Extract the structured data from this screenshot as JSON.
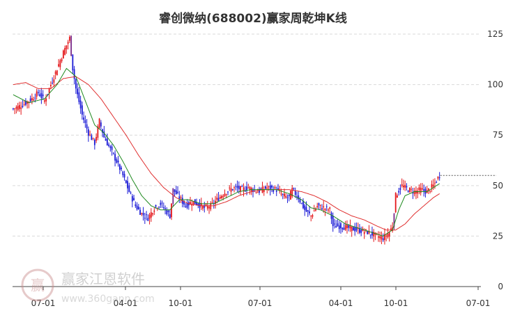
{
  "chart_data": {
    "type": "candlestick",
    "title": "睿创微纳(688002)赢家周乾坤K线",
    "x_ticks": [
      "07-01",
      "04-01",
      "10-01",
      "07-01",
      "04-01",
      "10-01",
      "07-01"
    ],
    "y_ticks": [
      0,
      25,
      50,
      75,
      100,
      125
    ],
    "ylim": [
      0,
      135
    ],
    "grid": "horizontal dashed",
    "current_level": 55,
    "colors": {
      "up": "#e4161a",
      "down": "#1a1ad6",
      "neutral": "#7a2a8a",
      "ma_short": "#1f8a1f",
      "ma_long": "#e03030",
      "grid": "#d9d9d9",
      "level_line": "#555555"
    },
    "series": [
      {
        "name": "price",
        "anchors": [
          [
            0,
            88
          ],
          [
            6,
            90
          ],
          [
            12,
            93
          ],
          [
            16,
            96
          ],
          [
            20,
            92
          ],
          [
            24,
            100
          ],
          [
            28,
            108
          ],
          [
            32,
            116
          ],
          [
            36,
            123
          ],
          [
            38,
            108
          ],
          [
            40,
            98
          ],
          [
            44,
            85
          ],
          [
            48,
            76
          ],
          [
            52,
            71
          ],
          [
            55,
            82
          ],
          [
            58,
            74
          ],
          [
            62,
            68
          ],
          [
            66,
            62
          ],
          [
            70,
            55
          ],
          [
            74,
            47
          ],
          [
            78,
            40
          ],
          [
            82,
            36
          ],
          [
            86,
            34
          ],
          [
            90,
            39
          ],
          [
            94,
            41
          ],
          [
            98,
            37
          ],
          [
            100,
            35
          ],
          [
            102,
            48
          ],
          [
            106,
            44
          ],
          [
            110,
            40
          ],
          [
            114,
            42
          ],
          [
            118,
            41
          ],
          [
            122,
            39
          ],
          [
            126,
            40
          ],
          [
            130,
            43
          ],
          [
            134,
            46
          ],
          [
            138,
            48
          ],
          [
            142,
            49
          ],
          [
            146,
            48
          ],
          [
            150,
            49
          ],
          [
            156,
            47
          ],
          [
            162,
            49
          ],
          [
            168,
            48
          ],
          [
            172,
            45
          ],
          [
            176,
            44
          ],
          [
            178,
            48
          ],
          [
            182,
            44
          ],
          [
            186,
            38
          ],
          [
            190,
            35
          ],
          [
            194,
            40
          ],
          [
            198,
            39
          ],
          [
            202,
            38
          ],
          [
            204,
            30
          ],
          [
            208,
            30
          ],
          [
            214,
            29
          ],
          [
            220,
            28
          ],
          [
            226,
            27
          ],
          [
            232,
            25
          ],
          [
            236,
            24
          ],
          [
            240,
            27
          ],
          [
            242,
            30
          ],
          [
            244,
            45
          ],
          [
            248,
            50
          ],
          [
            252,
            48
          ],
          [
            256,
            47
          ],
          [
            260,
            48
          ],
          [
            264,
            47
          ],
          [
            268,
            50
          ],
          [
            272,
            55
          ]
        ]
      },
      {
        "name": "ma_short",
        "anchors": [
          [
            0,
            95
          ],
          [
            10,
            91
          ],
          [
            20,
            93
          ],
          [
            28,
            100
          ],
          [
            34,
            108
          ],
          [
            40,
            104
          ],
          [
            46,
            92
          ],
          [
            52,
            80
          ],
          [
            58,
            76
          ],
          [
            64,
            70
          ],
          [
            70,
            62
          ],
          [
            76,
            53
          ],
          [
            82,
            45
          ],
          [
            88,
            40
          ],
          [
            94,
            38
          ],
          [
            100,
            38
          ],
          [
            106,
            43
          ],
          [
            112,
            43
          ],
          [
            120,
            41
          ],
          [
            128,
            41
          ],
          [
            136,
            44
          ],
          [
            144,
            47
          ],
          [
            152,
            48
          ],
          [
            160,
            48
          ],
          [
            168,
            48
          ],
          [
            176,
            46
          ],
          [
            184,
            43
          ],
          [
            190,
            39
          ],
          [
            196,
            38
          ],
          [
            204,
            35
          ],
          [
            212,
            31
          ],
          [
            220,
            29
          ],
          [
            228,
            27
          ],
          [
            236,
            25
          ],
          [
            242,
            28
          ],
          [
            246,
            38
          ],
          [
            250,
            45
          ],
          [
            256,
            47
          ],
          [
            264,
            47
          ],
          [
            272,
            51
          ]
        ]
      },
      {
        "name": "ma_long",
        "anchors": [
          [
            0,
            100
          ],
          [
            8,
            101
          ],
          [
            16,
            98
          ],
          [
            24,
            98
          ],
          [
            32,
            103
          ],
          [
            40,
            104
          ],
          [
            48,
            100
          ],
          [
            56,
            93
          ],
          [
            64,
            84
          ],
          [
            72,
            75
          ],
          [
            80,
            65
          ],
          [
            88,
            56
          ],
          [
            96,
            49
          ],
          [
            104,
            44
          ],
          [
            112,
            41
          ],
          [
            120,
            40
          ],
          [
            128,
            40
          ],
          [
            136,
            42
          ],
          [
            144,
            45
          ],
          [
            152,
            47
          ],
          [
            160,
            48
          ],
          [
            168,
            48
          ],
          [
            176,
            48
          ],
          [
            184,
            47
          ],
          [
            192,
            45
          ],
          [
            200,
            42
          ],
          [
            208,
            38
          ],
          [
            216,
            35
          ],
          [
            224,
            33
          ],
          [
            232,
            30
          ],
          [
            238,
            28
          ],
          [
            244,
            28
          ],
          [
            250,
            31
          ],
          [
            256,
            36
          ],
          [
            262,
            40
          ],
          [
            268,
            44
          ],
          [
            272,
            46
          ]
        ]
      }
    ]
  },
  "watermark": {
    "company": "赢家江恩软件",
    "url": "www.360gann.com",
    "logo_text": "赢"
  }
}
